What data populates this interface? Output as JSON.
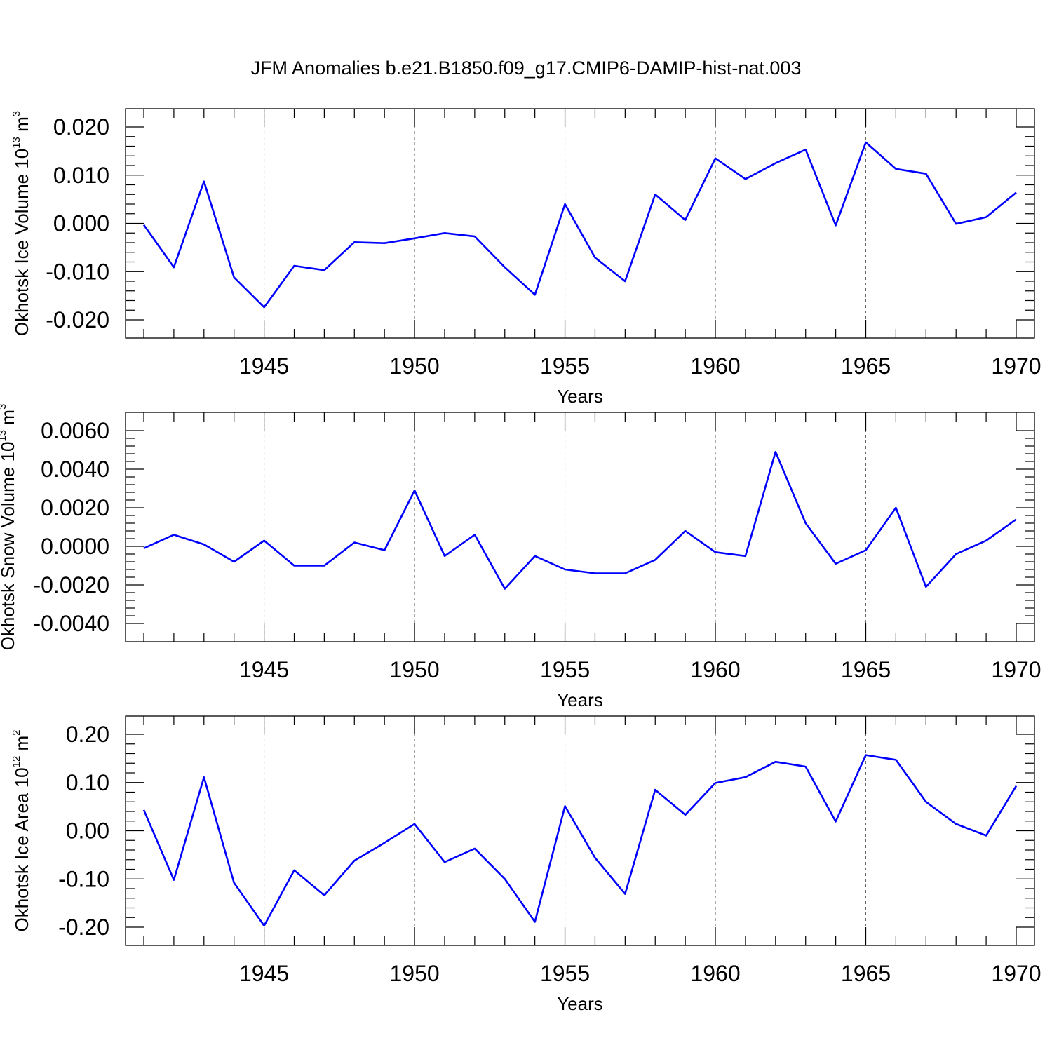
{
  "title": "JFM Anomalies b.e21.B1850.f09_g17.CMIP6-DAMIP-hist-nat.003",
  "line_color": "#0000ff",
  "chart_data": [
    {
      "type": "line",
      "ylabel_main": "Okhotsk Ice Volume 10",
      "ylabel_exp": "13",
      "ylabel_unit": " m",
      "ylabel_unit_exp": "3",
      "xlabel": "Years",
      "xlim": [
        1941,
        1970
      ],
      "ylim": [
        -0.02,
        0.02
      ],
      "xticks": [
        1945,
        1950,
        1955,
        1960,
        1965,
        1970
      ],
      "xtick_labels": [
        "1945",
        "1950",
        "1955",
        "1960",
        "1965",
        "1970"
      ],
      "yticks": [
        -0.02,
        -0.01,
        0.0,
        0.01,
        0.02
      ],
      "ytick_labels": [
        "-0.020",
        "-0.010",
        "0.000",
        "0.010",
        "0.020"
      ],
      "grid": "vertical dashed at major x ticks",
      "x": [
        1941,
        1942,
        1943,
        1944,
        1945,
        1946,
        1947,
        1948,
        1949,
        1950,
        1951,
        1952,
        1953,
        1954,
        1955,
        1956,
        1957,
        1958,
        1959,
        1960,
        1961,
        1962,
        1963,
        1964,
        1965,
        1966,
        1967,
        1968,
        1969,
        1970
      ],
      "values": [
        -0.0003,
        -0.0091,
        0.0087,
        -0.0112,
        -0.0174,
        -0.0088,
        -0.0097,
        -0.0039,
        -0.0041,
        -0.0031,
        -0.002,
        -0.0027,
        -0.0091,
        -0.0148,
        0.004,
        -0.0071,
        -0.012,
        0.006,
        0.0007,
        0.0135,
        0.0092,
        0.0125,
        0.0153,
        -0.0004,
        0.0168,
        0.0113,
        0.0103,
        -0.0001,
        0.0013,
        0.0064
      ]
    },
    {
      "type": "line",
      "ylabel_main": "Okhotsk Snow Volume 10",
      "ylabel_exp": "13",
      "ylabel_unit": " m",
      "ylabel_unit_exp": "3",
      "xlabel": "Years",
      "xlim": [
        1941,
        1970
      ],
      "ylim": [
        -0.004,
        0.006
      ],
      "xticks": [
        1945,
        1950,
        1955,
        1960,
        1965,
        1970
      ],
      "xtick_labels": [
        "1945",
        "1950",
        "1955",
        "1960",
        "1965",
        "1970"
      ],
      "yticks": [
        -0.004,
        -0.002,
        0.0,
        0.002,
        0.004,
        0.006
      ],
      "ytick_labels": [
        "-0.0040",
        "-0.0020",
        "0.0000",
        "0.0020",
        "0.0040",
        "0.0060"
      ],
      "grid": "vertical dashed at major x ticks",
      "x": [
        1941,
        1942,
        1943,
        1944,
        1945,
        1946,
        1947,
        1948,
        1949,
        1950,
        1951,
        1952,
        1953,
        1954,
        1955,
        1956,
        1957,
        1958,
        1959,
        1960,
        1961,
        1962,
        1963,
        1964,
        1965,
        1966,
        1967,
        1968,
        1969,
        1970
      ],
      "values": [
        -0.0001,
        0.0006,
        0.0001,
        -0.0008,
        0.0003,
        -0.001,
        -0.001,
        0.0002,
        -0.0002,
        0.0029,
        -0.0005,
        0.0006,
        -0.0022,
        -0.0005,
        -0.0012,
        -0.0014,
        -0.0014,
        -0.0007,
        0.0008,
        -0.0003,
        -0.0005,
        0.0049,
        0.0012,
        -0.0009,
        -0.0002,
        0.002,
        -0.0021,
        -0.0004,
        0.0003,
        0.0014
      ]
    },
    {
      "type": "line",
      "ylabel_main": "Okhotsk Ice Area 10",
      "ylabel_exp": "12",
      "ylabel_unit": " m",
      "ylabel_unit_exp": "2",
      "xlabel": "Years",
      "xlim": [
        1941,
        1970
      ],
      "ylim": [
        -0.2,
        0.2
      ],
      "xticks": [
        1945,
        1950,
        1955,
        1960,
        1965,
        1970
      ],
      "xtick_labels": [
        "1945",
        "1950",
        "1955",
        "1960",
        "1965",
        "1970"
      ],
      "yticks": [
        -0.2,
        -0.1,
        0.0,
        0.1,
        0.2
      ],
      "ytick_labels": [
        "-0.20",
        "-0.10",
        "0.00",
        "0.10",
        "0.20"
      ],
      "grid": "vertical dashed at major x ticks",
      "x": [
        1941,
        1942,
        1943,
        1944,
        1945,
        1946,
        1947,
        1948,
        1949,
        1950,
        1951,
        1952,
        1953,
        1954,
        1955,
        1956,
        1957,
        1958,
        1959,
        1960,
        1961,
        1962,
        1963,
        1964,
        1965,
        1966,
        1967,
        1968,
        1969,
        1970
      ],
      "values": [
        0.043,
        -0.102,
        0.111,
        -0.108,
        -0.197,
        -0.082,
        -0.134,
        -0.062,
        -0.025,
        0.014,
        -0.065,
        -0.037,
        -0.1,
        -0.189,
        0.051,
        -0.056,
        -0.131,
        0.085,
        0.033,
        0.099,
        0.111,
        0.143,
        0.133,
        0.019,
        0.157,
        0.147,
        0.06,
        0.014,
        -0.01,
        0.093
      ]
    }
  ]
}
